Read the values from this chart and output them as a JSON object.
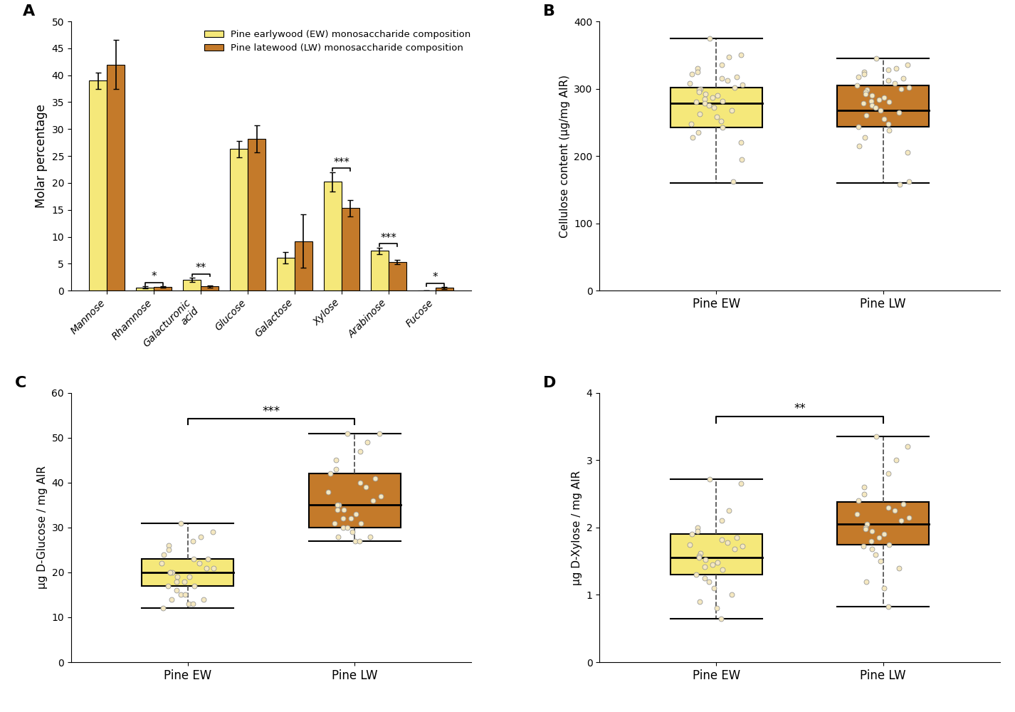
{
  "panel_A": {
    "categories": [
      "Mannose",
      "Rhamnose",
      "Galacturonic\nacid",
      "Glucose",
      "Galactose",
      "Xylose",
      "Arabinose",
      "Fucose"
    ],
    "EW_means": [
      39.0,
      0.6,
      2.0,
      26.3,
      6.1,
      20.2,
      7.4,
      0.0
    ],
    "LW_means": [
      42.0,
      0.7,
      0.8,
      28.2,
      9.2,
      15.3,
      5.3,
      0.5
    ],
    "EW_errors": [
      1.5,
      0.15,
      0.4,
      1.5,
      1.0,
      1.8,
      0.6,
      0.0
    ],
    "LW_errors": [
      4.5,
      0.1,
      0.2,
      2.5,
      5.0,
      1.5,
      0.4,
      0.15
    ],
    "EW_color": "#F5E87A",
    "LW_color": "#C47A2A",
    "ylabel": "Molar percentage",
    "ylim": [
      0,
      50
    ],
    "yticks": [
      0,
      5,
      10,
      15,
      20,
      25,
      30,
      35,
      40,
      45,
      50
    ],
    "legend_EW": "Pine earlywood (EW) monosaccharide composition",
    "legend_LW": "Pine latewood (LW) monosaccharide composition"
  },
  "panel_B": {
    "EW_whisker_low": 160,
    "EW_whisker_high": 375,
    "EW_Q1": 242,
    "EW_median": 278,
    "EW_Q3": 302,
    "LW_whisker_low": 160,
    "LW_whisker_high": 345,
    "LW_Q1": 243,
    "LW_median": 268,
    "LW_Q3": 305,
    "EW_points": [
      375,
      350,
      347,
      335,
      330,
      325,
      322,
      318,
      315,
      312,
      308,
      306,
      302,
      300,
      298,
      295,
      292,
      290,
      287,
      285,
      282,
      280,
      278,
      275,
      272,
      268,
      263,
      258,
      252,
      248,
      242,
      235,
      228,
      220,
      195,
      162
    ],
    "LW_points": [
      345,
      335,
      330,
      328,
      325,
      322,
      318,
      315,
      312,
      308,
      305,
      302,
      300,
      298,
      295,
      292,
      290,
      287,
      284,
      282,
      280,
      278,
      275,
      272,
      268,
      265,
      260,
      255,
      248,
      243,
      238,
      228,
      215,
      205,
      162,
      158
    ],
    "ylabel": "Cellulose content (μg/mg AIR)",
    "ylim": [
      0,
      400
    ],
    "yticks": [
      0,
      100,
      200,
      300,
      400
    ],
    "xlabel_EW": "Pine EW",
    "xlabel_LW": "Pine LW",
    "EW_color": "#F5E87A",
    "LW_color": "#C47A2A"
  },
  "panel_C": {
    "EW_whisker_low": 12,
    "EW_whisker_high": 31,
    "EW_Q1": 17,
    "EW_median": 20,
    "EW_Q3": 23,
    "LW_whisker_low": 27,
    "LW_whisker_high": 51,
    "LW_Q1": 30,
    "LW_median": 35,
    "LW_Q3": 42,
    "EW_points": [
      31,
      29,
      28,
      27,
      26,
      25,
      24,
      23,
      23,
      22,
      22,
      21,
      21,
      20,
      20,
      20,
      19,
      19,
      18,
      18,
      17,
      17,
      16,
      15,
      15,
      14,
      14,
      13,
      13,
      12
    ],
    "LW_points": [
      51,
      51,
      49,
      47,
      45,
      43,
      42,
      41,
      40,
      39,
      38,
      37,
      36,
      35,
      35,
      34,
      34,
      33,
      32,
      32,
      31,
      31,
      30,
      30,
      29,
      28,
      28,
      27,
      27
    ],
    "ylabel": "μg D-Glucose / mg AIR",
    "ylim": [
      0,
      60
    ],
    "yticks": [
      0,
      10,
      20,
      30,
      40,
      50,
      60
    ],
    "xlabel_EW": "Pine EW",
    "xlabel_LW": "Pine LW",
    "significance": "***",
    "EW_color": "#F5E87A",
    "LW_color": "#C47A2A"
  },
  "panel_D": {
    "EW_whisker_low": 0.65,
    "EW_whisker_high": 2.72,
    "EW_Q1": 1.3,
    "EW_median": 1.55,
    "EW_Q3": 1.9,
    "LW_whisker_low": 0.82,
    "LW_whisker_high": 3.35,
    "LW_Q1": 1.75,
    "LW_median": 2.05,
    "LW_Q3": 2.38,
    "EW_points": [
      2.72,
      2.65,
      2.25,
      2.1,
      2.0,
      1.95,
      1.9,
      1.85,
      1.82,
      1.78,
      1.75,
      1.72,
      1.68,
      1.62,
      1.58,
      1.55,
      1.52,
      1.48,
      1.45,
      1.42,
      1.38,
      1.3,
      1.25,
      1.2,
      1.1,
      1.0,
      0.9,
      0.8,
      0.65
    ],
    "LW_points": [
      3.35,
      3.2,
      3.0,
      2.8,
      2.6,
      2.5,
      2.4,
      2.35,
      2.3,
      2.25,
      2.2,
      2.15,
      2.1,
      2.05,
      2.0,
      1.98,
      1.95,
      1.9,
      1.85,
      1.8,
      1.75,
      1.72,
      1.68,
      1.6,
      1.5,
      1.4,
      1.2,
      1.1,
      0.82
    ],
    "ylabel": "μg D-Xylose / mg AIR",
    "ylim": [
      0,
      4
    ],
    "yticks": [
      0,
      1,
      2,
      3,
      4
    ],
    "xlabel_EW": "Pine EW",
    "xlabel_LW": "Pine LW",
    "significance": "**",
    "EW_color": "#F5E87A",
    "LW_color": "#C47A2A"
  }
}
